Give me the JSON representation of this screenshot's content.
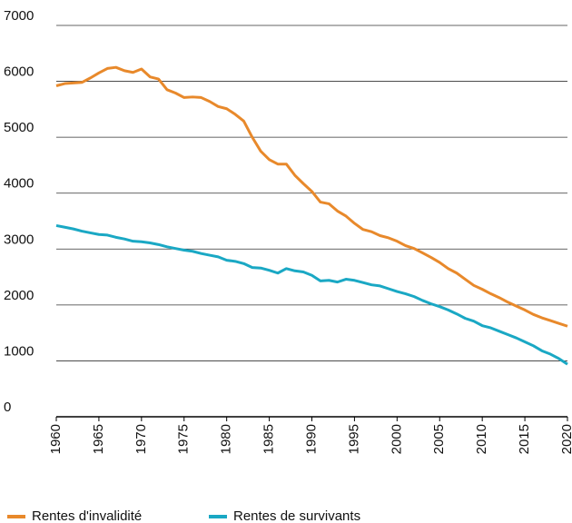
{
  "chart_data": {
    "type": "line",
    "x": [
      1960,
      1961,
      1962,
      1963,
      1964,
      1965,
      1966,
      1967,
      1968,
      1969,
      1970,
      1971,
      1972,
      1973,
      1974,
      1975,
      1976,
      1977,
      1978,
      1979,
      1980,
      1981,
      1982,
      1983,
      1984,
      1985,
      1986,
      1987,
      1988,
      1989,
      1990,
      1991,
      1992,
      1993,
      1994,
      1995,
      1996,
      1997,
      1998,
      1999,
      2000,
      2001,
      2002,
      2003,
      2004,
      2005,
      2006,
      2007,
      2008,
      2009,
      2010,
      2011,
      2012,
      2013,
      2014,
      2015,
      2016,
      2017,
      2018,
      2019,
      2020
    ],
    "series": [
      {
        "name": "Rentes d'invalidité",
        "color": "#e8892b",
        "values": [
          5920,
          5960,
          5970,
          5980,
          6060,
          6150,
          6230,
          6250,
          6190,
          6160,
          6220,
          6080,
          6040,
          5850,
          5790,
          5710,
          5720,
          5710,
          5640,
          5550,
          5510,
          5410,
          5290,
          5000,
          4750,
          4600,
          4520,
          4520,
          4320,
          4170,
          4030,
          3840,
          3810,
          3680,
          3590,
          3460,
          3350,
          3310,
          3240,
          3200,
          3140,
          3060,
          3010,
          2930,
          2850,
          2760,
          2650,
          2570,
          2460,
          2350,
          2280,
          2200,
          2130,
          2050,
          1980,
          1910,
          1830,
          1770,
          1720,
          1670,
          1620
        ]
      },
      {
        "name": "Rentes de survivants",
        "color": "#1aa8c4",
        "values": [
          3420,
          3390,
          3360,
          3320,
          3290,
          3260,
          3250,
          3210,
          3180,
          3140,
          3130,
          3110,
          3080,
          3040,
          3010,
          2980,
          2960,
          2920,
          2890,
          2860,
          2800,
          2780,
          2740,
          2670,
          2660,
          2620,
          2570,
          2650,
          2610,
          2590,
          2530,
          2430,
          2440,
          2410,
          2460,
          2440,
          2400,
          2360,
          2340,
          2290,
          2240,
          2200,
          2150,
          2080,
          2020,
          1970,
          1910,
          1840,
          1760,
          1710,
          1630,
          1590,
          1530,
          1470,
          1410,
          1340,
          1270,
          1180,
          1120,
          1040,
          940
        ]
      }
    ],
    "xlim": [
      1960,
      2020
    ],
    "xticks": [
      1960,
      1965,
      1970,
      1975,
      1980,
      1985,
      1990,
      1995,
      2000,
      2005,
      2010,
      2015,
      2020
    ],
    "ylim": [
      0,
      7000
    ],
    "yticks": [
      0,
      1000,
      2000,
      3000,
      4000,
      5000,
      6000,
      7000
    ],
    "grid": true,
    "legend": "bottom"
  }
}
